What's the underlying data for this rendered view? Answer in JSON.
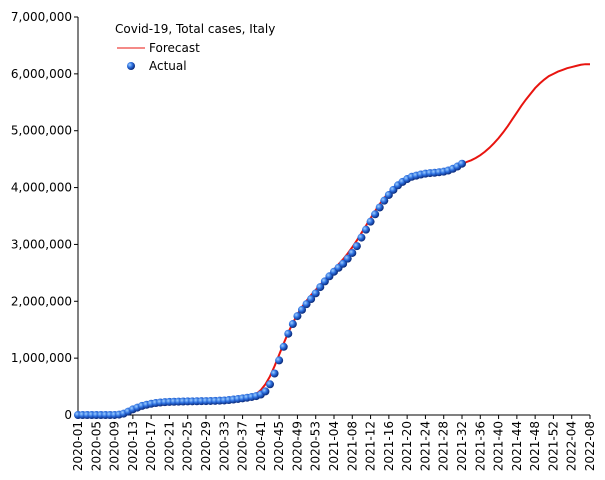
{
  "chart_data": {
    "type": "line",
    "title": "Covid-19, Total cases, Italy",
    "categories": [
      "2020-01",
      null,
      null,
      null,
      "2020-05",
      null,
      null,
      null,
      "2020-09",
      null,
      null,
      null,
      "2020-13",
      null,
      null,
      null,
      "2020-17",
      null,
      null,
      null,
      "2020-21",
      null,
      null,
      null,
      "2020-25",
      null,
      null,
      null,
      "2020-29",
      null,
      null,
      null,
      "2020-33",
      null,
      null,
      null,
      "2020-37",
      null,
      null,
      null,
      "2020-41",
      null,
      null,
      null,
      "2020-45",
      null,
      null,
      null,
      "2020-49",
      null,
      null,
      null,
      "2020-53",
      null,
      null,
      null,
      "2021-04",
      null,
      null,
      null,
      "2021-08",
      null,
      null,
      null,
      "2021-12",
      null,
      null,
      null,
      "2021-16",
      null,
      null,
      null,
      "2021-20",
      null,
      null,
      null,
      "2021-24",
      null,
      null,
      null,
      "2021-28",
      null,
      null,
      null,
      "2021-32",
      null,
      null,
      null,
      "2021-36",
      null,
      null,
      null,
      "2021-40",
      null,
      null,
      null,
      "2021-44",
      null,
      null,
      null,
      "2021-48",
      null,
      null,
      null,
      "2021-52",
      null,
      null,
      null,
      "2022-04",
      null,
      null,
      null,
      "2022-08"
    ],
    "series": [
      {
        "name": "Forecast",
        "color": "#e8140f",
        "style": "line",
        "values": [
          0,
          0,
          0,
          0,
          0,
          0,
          0,
          0,
          5000,
          20000,
          40000,
          70000,
          95000,
          115000,
          135000,
          150000,
          160000,
          170000,
          178000,
          185000,
          190000,
          195000,
          200000,
          203000,
          206000,
          209000,
          212000,
          215000,
          218000,
          222000,
          226000,
          230000,
          235000,
          242000,
          250000,
          260000,
          272000,
          290000,
          320000,
          370000,
          440000,
          540000,
          680000,
          860000,
          1060000,
          1260000,
          1450000,
          1620000,
          1770000,
          1900000,
          2010000,
          2110000,
          2200000,
          2290000,
          2380000,
          2470000,
          2560000,
          2650000,
          2740000,
          2840000,
          2950000,
          3070000,
          3200000,
          3330000,
          3460000,
          3590000,
          3710000,
          3820000,
          3910000,
          3990000,
          4060000,
          4110000,
          4150000,
          4180000,
          4200000,
          4220000,
          4235000,
          4250000,
          4260000,
          4270000,
          4290000,
          4310000,
          4340000,
          4370000,
          4410000,
          4450000,
          4480000,
          4520000,
          4570000,
          4630000,
          4700000,
          4780000,
          4870000,
          4970000,
          5080000,
          5200000,
          5320000,
          5440000,
          5550000,
          5650000,
          5750000,
          5830000,
          5900000,
          5960000,
          6000000,
          6040000,
          6070000,
          6100000,
          6120000,
          6140000,
          6160000,
          6170000,
          6170000
        ]
      },
      {
        "name": "Actual",
        "color": "#1f5fd6",
        "style": "markers",
        "values": [
          0,
          0,
          0,
          0,
          0,
          0,
          0,
          0,
          1000,
          7000,
          25000,
          60000,
          100000,
          130000,
          160000,
          180000,
          197000,
          210000,
          220000,
          226000,
          230000,
          233000,
          235000,
          237000,
          239000,
          240000,
          242000,
          243000,
          245000,
          247000,
          249000,
          252000,
          256000,
          263000,
          272000,
          282000,
          293000,
          304000,
          317000,
          333000,
          360000,
          415000,
          540000,
          730000,
          960000,
          1200000,
          1430000,
          1600000,
          1740000,
          1850000,
          1950000,
          2040000,
          2140000,
          2250000,
          2350000,
          2440000,
          2520000,
          2590000,
          2660000,
          2750000,
          2850000,
          2970000,
          3120000,
          3260000,
          3400000,
          3530000,
          3650000,
          3770000,
          3870000,
          3960000,
          4040000,
          4100000,
          4150000,
          4190000,
          4210000,
          4230000,
          4245000,
          4255000,
          4260000,
          4270000,
          4280000,
          4300000,
          4330000,
          4370000,
          4420000,
          null,
          null,
          null,
          null,
          null,
          null,
          null,
          null,
          null,
          null,
          null,
          null,
          null,
          null,
          null,
          null,
          null,
          null,
          null,
          null,
          null,
          null,
          null,
          null,
          null,
          null,
          null,
          null
        ]
      }
    ],
    "ylim": [
      0,
      7000000
    ],
    "yticks": [
      0,
      {
        "value": 1000000,
        "label": "1,000,000"
      },
      {
        "value": 2000000,
        "label": "2,000,000"
      },
      {
        "value": 3000000,
        "label": "3,000,000"
      },
      {
        "value": 4000000,
        "label": "4,000,000"
      },
      {
        "value": 5000000,
        "label": "5,000,000"
      },
      {
        "value": 6000000,
        "label": "6,000,000"
      },
      {
        "value": 7000000,
        "label": "7,000,000"
      }
    ],
    "grid": false,
    "legend": "top-left"
  }
}
